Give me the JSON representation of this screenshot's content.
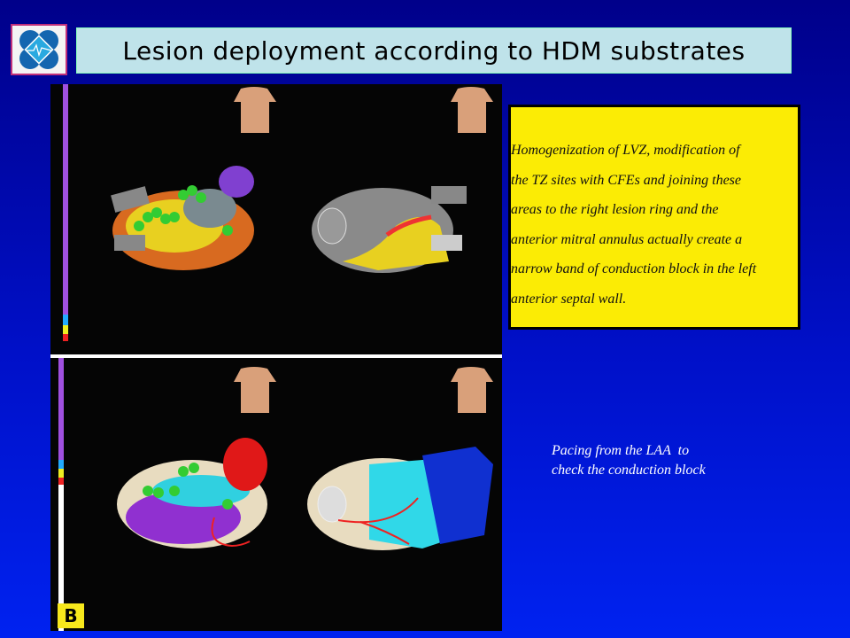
{
  "slide": {
    "title": "Lesion deployment according to HDM substrates",
    "logo_icon": "heart-monitor-logo-icon",
    "panel_label": "B",
    "note": {
      "lines": [
        "Homogenization of LVZ, modification of",
        "the TZ sites with CFEs and joining these",
        "areas to the right lesion ring and the",
        "anterior mitral annulus actually create a",
        "narrow band of conduction block in the left",
        "anterior septal wall."
      ],
      "background": "#fbec05"
    },
    "pacing": {
      "lines": [
        "Pacing from the LAA  to",
        "check the conduction block"
      ]
    }
  }
}
